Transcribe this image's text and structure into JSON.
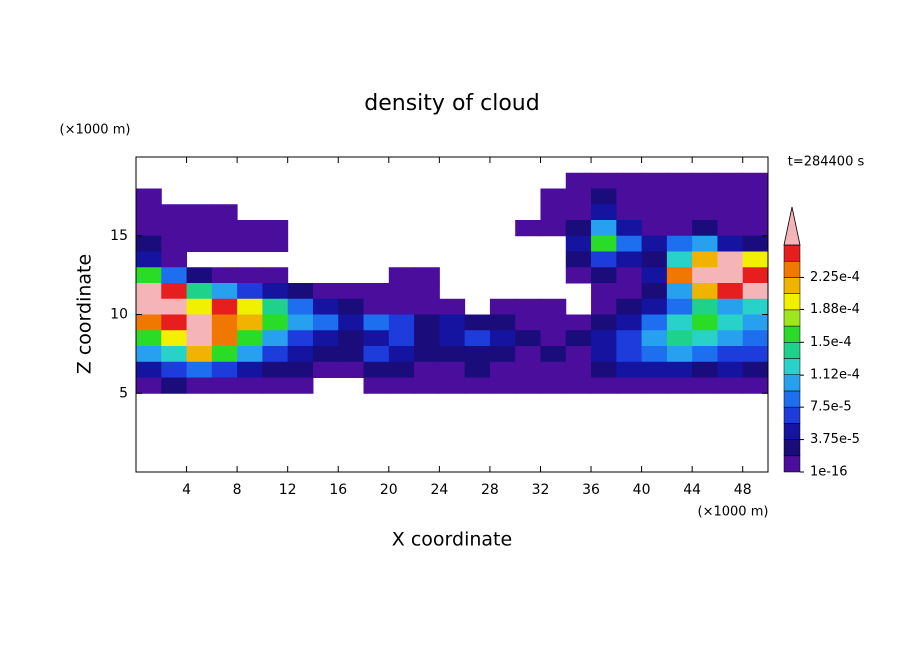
{
  "chart_data": {
    "type": "contour",
    "title": "density of cloud",
    "x_label": "X coordinate",
    "y_label": "Z coordinate",
    "x_unit": "(×1000 m)",
    "y_unit": "(×1000 m)",
    "annotation": "t=284400 s",
    "xlim": [
      0,
      50
    ],
    "ylim": [
      0,
      20
    ],
    "xticks": [
      4,
      8,
      12,
      16,
      20,
      24,
      28,
      32,
      36,
      40,
      44,
      48
    ],
    "yticks": [
      5,
      10,
      15
    ],
    "x": [
      1,
      3,
      5,
      7,
      9,
      11,
      13,
      15,
      17,
      19,
      21,
      23,
      25,
      27,
      29,
      31,
      33,
      35,
      37,
      39,
      41,
      43,
      45,
      47,
      49
    ],
    "y": [
      18.5,
      17.5,
      16.5,
      15.5,
      14.5,
      13.5,
      12.5,
      11.5,
      10.5,
      9.5,
      8.5,
      7.5,
      6.5,
      5.5
    ],
    "z": [
      [
        null,
        null,
        null,
        null,
        null,
        null,
        null,
        null,
        null,
        null,
        null,
        null,
        null,
        null,
        null,
        null,
        null,
        1e-05,
        1e-05,
        1e-05,
        1e-05,
        1e-05,
        1e-05,
        1e-05,
        1e-05
      ],
      [
        1e-05,
        null,
        null,
        null,
        null,
        null,
        null,
        null,
        null,
        null,
        null,
        null,
        null,
        null,
        null,
        null,
        1e-05,
        1e-05,
        2.8e-05,
        1e-05,
        1e-05,
        1e-05,
        1e-05,
        1e-05,
        1e-05
      ],
      [
        1e-05,
        1e-05,
        1e-05,
        1e-05,
        null,
        null,
        null,
        null,
        null,
        null,
        null,
        null,
        null,
        null,
        null,
        null,
        1e-05,
        1e-05,
        4.7e-05,
        1e-05,
        1e-05,
        1e-05,
        1e-05,
        1e-05,
        1e-05
      ],
      [
        1e-05,
        1e-05,
        1e-05,
        1e-05,
        1e-05,
        1e-05,
        null,
        null,
        null,
        null,
        null,
        null,
        null,
        null,
        null,
        1e-05,
        1e-05,
        2.8e-05,
        0.000103,
        4.7e-05,
        1e-05,
        1e-05,
        2.8e-05,
        1e-05,
        1e-05
      ],
      [
        2.8e-05,
        1e-05,
        1e-05,
        1e-05,
        1e-05,
        1e-05,
        null,
        null,
        null,
        null,
        null,
        null,
        null,
        null,
        null,
        null,
        null,
        4.7e-05,
        0.00016,
        8.4e-05,
        4.7e-05,
        8.4e-05,
        0.000103,
        4.7e-05,
        2.8e-05
      ],
      [
        4.7e-05,
        1e-05,
        null,
        null,
        null,
        null,
        null,
        null,
        null,
        null,
        null,
        null,
        null,
        null,
        null,
        null,
        null,
        2.8e-05,
        6.6e-05,
        4.7e-05,
        2.8e-05,
        0.000122,
        0.000216,
        0.00028,
        0.000197
      ],
      [
        0.00016,
        8.4e-05,
        2.8e-05,
        1e-05,
        1e-05,
        1e-05,
        null,
        null,
        null,
        null,
        1e-05,
        1e-05,
        null,
        null,
        null,
        null,
        null,
        1e-05,
        2.8e-05,
        1e-05,
        4.7e-05,
        0.000234,
        0.00028,
        0.00028,
        0.000253
      ],
      [
        0.00028,
        0.000253,
        0.00014,
        0.000103,
        6.6e-05,
        4.7e-05,
        2.8e-05,
        1e-05,
        1e-05,
        1e-05,
        1e-05,
        1e-05,
        null,
        null,
        null,
        null,
        null,
        null,
        1e-05,
        1e-05,
        2.8e-05,
        0.000103,
        0.000216,
        0.000253,
        0.00028
      ],
      [
        0.00028,
        0.00028,
        0.000197,
        0.000253,
        0.000197,
        0.00014,
        8.4e-05,
        4.7e-05,
        2.8e-05,
        1e-05,
        1e-05,
        1e-05,
        1e-05,
        null,
        1e-05,
        1e-05,
        1e-05,
        null,
        1e-05,
        2.8e-05,
        4.7e-05,
        8.4e-05,
        0.00014,
        0.000103,
        0.000122
      ],
      [
        0.000234,
        0.000253,
        0.00028,
        0.000234,
        0.000216,
        0.00016,
        0.000103,
        8.4e-05,
        4.7e-05,
        8.4e-05,
        6.6e-05,
        2.8e-05,
        4.7e-05,
        2.8e-05,
        2.8e-05,
        1e-05,
        1e-05,
        1e-05,
        2.8e-05,
        4.7e-05,
        8.4e-05,
        0.000122,
        0.00016,
        0.000122,
        0.000103
      ],
      [
        0.00016,
        0.000197,
        0.00028,
        0.000234,
        0.00016,
        0.000103,
        6.6e-05,
        4.7e-05,
        2.8e-05,
        4.7e-05,
        6.6e-05,
        2.8e-05,
        4.7e-05,
        6.6e-05,
        4.7e-05,
        2.8e-05,
        1e-05,
        2.8e-05,
        4.7e-05,
        6.6e-05,
        0.000103,
        0.00014,
        0.000122,
        0.000103,
        8.4e-05
      ],
      [
        0.000103,
        0.000122,
        0.000216,
        0.00016,
        0.000103,
        6.6e-05,
        4.7e-05,
        2.8e-05,
        2.8e-05,
        6.6e-05,
        4.7e-05,
        2.8e-05,
        2.8e-05,
        2.8e-05,
        2.8e-05,
        1e-05,
        2.8e-05,
        1e-05,
        4.7e-05,
        6.6e-05,
        8.4e-05,
        0.000103,
        8.4e-05,
        6.6e-05,
        6.6e-05
      ],
      [
        4.7e-05,
        6.6e-05,
        8.4e-05,
        6.6e-05,
        4.7e-05,
        2.8e-05,
        2.8e-05,
        1e-05,
        1e-05,
        2.8e-05,
        2.8e-05,
        1e-05,
        1e-05,
        2.8e-05,
        1e-05,
        1e-05,
        1e-05,
        1e-05,
        2.8e-05,
        4.7e-05,
        4.7e-05,
        4.7e-05,
        2.8e-05,
        4.7e-05,
        2.8e-05
      ],
      [
        1e-05,
        2.8e-05,
        1e-05,
        1e-05,
        1e-05,
        1e-05,
        1e-05,
        null,
        null,
        1e-05,
        1e-05,
        1e-05,
        1e-05,
        1e-05,
        1e-05,
        1e-05,
        1e-05,
        1e-05,
        1e-05,
        1e-05,
        1e-05,
        1e-05,
        1e-05,
        1e-05,
        1e-05
      ]
    ],
    "levels": [
      1e-16,
      1.875e-05,
      3.75e-05,
      5.625e-05,
      7.5e-05,
      9.375e-05,
      0.0001125,
      0.00013125,
      0.00015,
      0.00016875,
      0.0001875,
      0.00020625,
      0.000225,
      0.00024375,
      0.0002625
    ],
    "colors": [
      "#4a0d9c",
      "#1a0c7a",
      "#1414a0",
      "#1e3cdc",
      "#1e6ef0",
      "#28a0f0",
      "#28d2c8",
      "#1ed28c",
      "#28dc28",
      "#a0e61e",
      "#f0f000",
      "#f0b400",
      "#f07800",
      "#e61e1e"
    ],
    "extend_color": "#f5b4b8",
    "colorbar_ticks": [
      1e-16,
      {
        "value": 3.75e-05,
        "label": "3.75e-5"
      },
      {
        "value": 7.5e-05,
        "label": "7.5e-5"
      },
      {
        "value": 0.000112,
        "label": "1.12e-4"
      },
      {
        "value": 0.00015,
        "label": "1.5e-4"
      },
      {
        "value": 0.000188,
        "label": "1.88e-4"
      },
      {
        "value": 0.000225,
        "label": "2.25e-4"
      }
    ]
  }
}
